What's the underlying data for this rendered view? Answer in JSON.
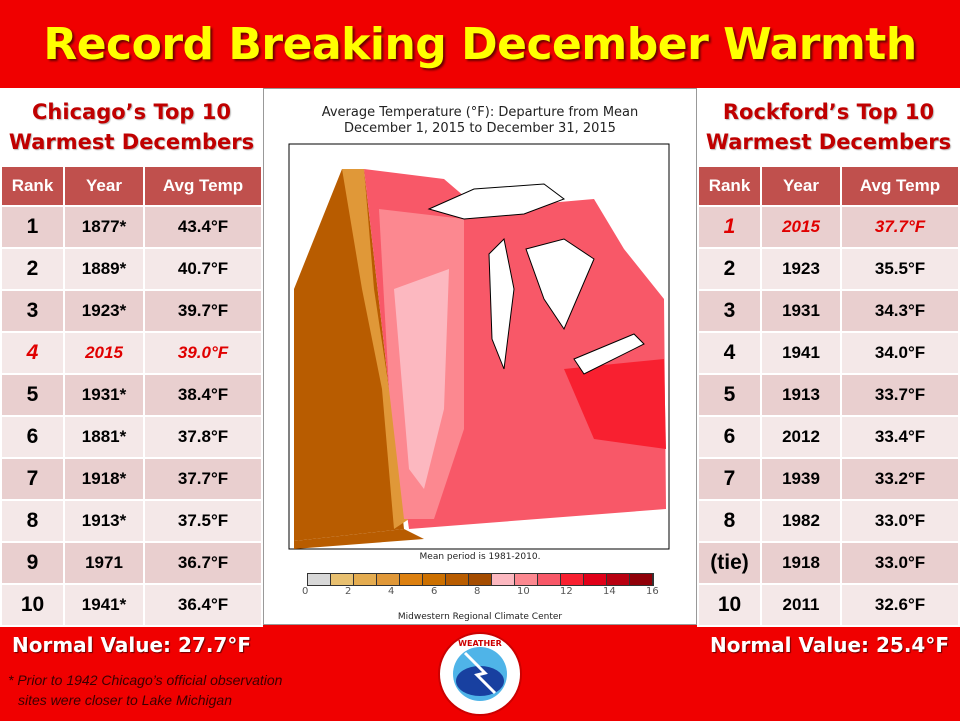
{
  "title": "Record Breaking December Warmth",
  "chicago": {
    "title_line1": "Chicago’s Top 10",
    "title_line2": "Warmest Decembers",
    "headers": [
      "Rank",
      "Year",
      "Avg Temp"
    ],
    "rows": [
      [
        "1",
        "1877*",
        "43.4°F"
      ],
      [
        "2",
        "1889*",
        "40.7°F"
      ],
      [
        "3",
        "1923*",
        "39.7°F"
      ],
      [
        "4",
        "2015",
        "39.0°F"
      ],
      [
        "5",
        "1931*",
        "38.4°F"
      ],
      [
        "6",
        "1881*",
        "37.8°F"
      ],
      [
        "7",
        "1918*",
        "37.7°F"
      ],
      [
        "8",
        "1913*",
        "37.5°F"
      ],
      [
        "9",
        "1971",
        "36.7°F"
      ],
      [
        "10",
        "1941*",
        "36.4°F"
      ]
    ],
    "highlight_row": 3,
    "normal": "Normal Value: 27.7°F"
  },
  "rockford": {
    "title_line1": "Rockford’s Top 10",
    "title_line2": "Warmest Decembers",
    "headers": [
      "Rank",
      "Year",
      "Avg Temp"
    ],
    "rows": [
      [
        "1",
        "2015",
        "37.7°F"
      ],
      [
        "2",
        "1923",
        "35.5°F"
      ],
      [
        "3",
        "1931",
        "34.3°F"
      ],
      [
        "4",
        "1941",
        "34.0°F"
      ],
      [
        "5",
        "1913",
        "33.7°F"
      ],
      [
        "6",
        "2012",
        "33.4°F"
      ],
      [
        "7",
        "1939",
        "33.2°F"
      ],
      [
        "8",
        "1982",
        "33.0°F"
      ],
      [
        "(tie)",
        "1918",
        "33.0°F"
      ],
      [
        "10",
        "2011",
        "32.6°F"
      ]
    ],
    "highlight_row": 0,
    "normal": "Normal Value: 25.4°F"
  },
  "map": {
    "title_line1": "Average Temperature (°F): Departure from Mean",
    "title_line2": "December 1, 2015 to December 31, 2015",
    "mean_period": "Mean period is 1981-2010.",
    "credit": "Midwestern Regional Climate Center",
    "legend_ticks": [
      "0",
      "2",
      "4",
      "6",
      "8",
      "10",
      "12",
      "14",
      "16"
    ],
    "legend_colors": [
      "#d8d8d8",
      "#e8c070",
      "#e4ac50",
      "#e09838",
      "#dc8010",
      "#cc7000",
      "#b85c00",
      "#a44c00",
      "#fcb8c0",
      "#fc8890",
      "#f85868",
      "#f82030",
      "#e00018",
      "#b80010",
      "#900008"
    ]
  },
  "footnote_line1": "* Prior to 1942 Chicago’s official observation",
  "footnote_line2": "sites  were closer to Lake Michigan",
  "logo_text": "NATIONAL WEATHER SERVICE"
}
